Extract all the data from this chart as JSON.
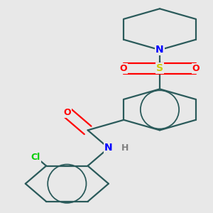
{
  "background_color": "#e8e8e8",
  "bond_color": "#2a5a5a",
  "atom_colors": {
    "N": "#0000ff",
    "O": "#ff0000",
    "S": "#cccc00",
    "Cl": "#00cc00",
    "H": "#808080",
    "C": "#2a5a5a"
  },
  "figsize": [
    3.0,
    3.0
  ],
  "dpi": 100
}
